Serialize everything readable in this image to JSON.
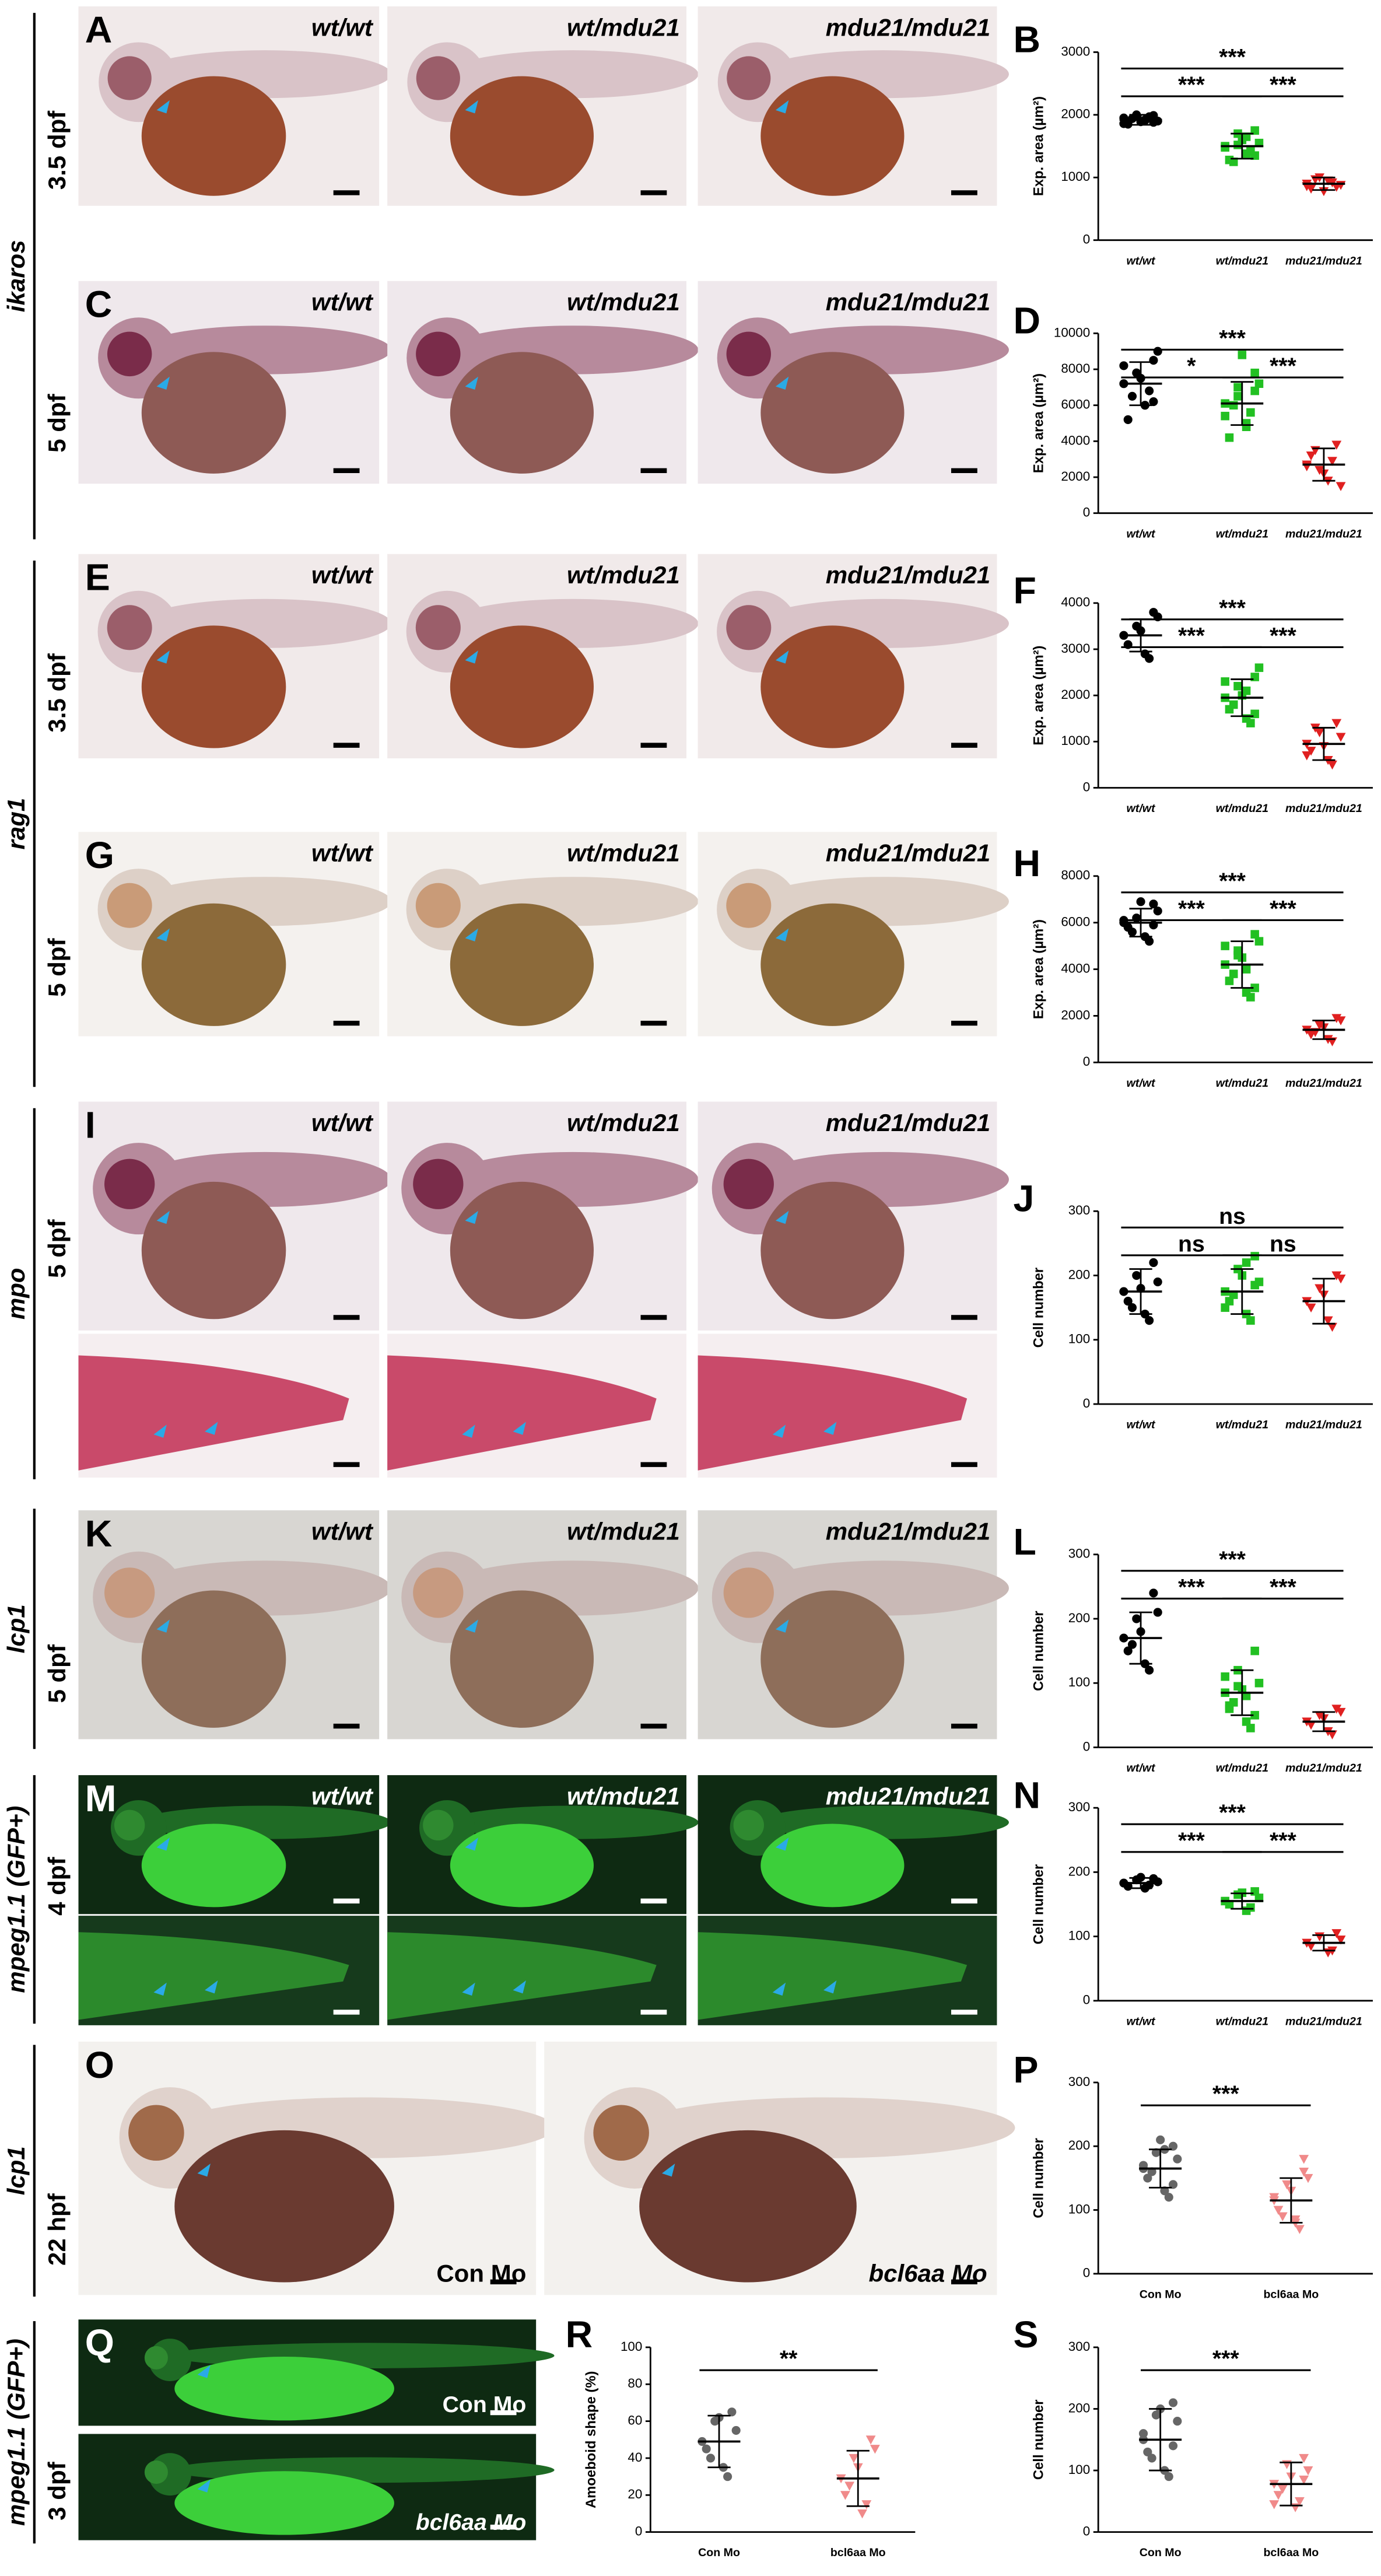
{
  "genes": [
    "ikaros",
    "rag1",
    "mpo",
    "lcp1",
    "mpeg1.1 (GFP+)",
    "lcp1",
    "mpeg1.1 (GFP+)"
  ],
  "panels": [
    {
      "letter": "A",
      "stage": "3.5 dpf",
      "labels": [
        "wt/wt",
        "wt/mdu21",
        "mdu21/mdu21"
      ]
    },
    {
      "letter": "C",
      "stage": "5 dpf",
      "labels": [
        "wt/wt",
        "wt/mdu21",
        "mdu21/mdu21"
      ]
    },
    {
      "letter": "E",
      "stage": "3.5 dpf",
      "labels": [
        "wt/wt",
        "wt/mdu21",
        "mdu21/mdu21"
      ]
    },
    {
      "letter": "G",
      "stage": "5 dpf",
      "labels": [
        "wt/wt",
        "wt/mdu21",
        "mdu21/mdu21"
      ]
    },
    {
      "letter": "I",
      "stage": "5 dpf",
      "labels": [
        "wt/wt",
        "wt/mdu21",
        "mdu21/mdu21"
      ]
    },
    {
      "letter": "K",
      "stage": "5 dpf",
      "labels": [
        "wt/wt",
        "wt/mdu21",
        "mdu21/mdu21"
      ]
    },
    {
      "letter": "M",
      "stage": "4 dpf",
      "labels": [
        "wt/wt",
        "wt/mdu21",
        "mdu21/mdu21"
      ]
    },
    {
      "letter": "O",
      "stage": "22 hpf",
      "labels": [
        "Con Mo",
        "bcl6aa Mo"
      ]
    },
    {
      "letter": "Q",
      "stage": "3 dpf",
      "labels": [
        "Con Mo",
        "bcl6aa Mo"
      ]
    }
  ],
  "chart_data": [
    {
      "type": "strip",
      "panel": "B",
      "y_label": "Exp. area (µm²)",
      "categories": [
        "wt/wt",
        "wt/mdu21",
        "mdu21/mdu21"
      ],
      "ylim": [
        0,
        3000
      ],
      "yticks": [
        0,
        1000,
        2000,
        3000
      ],
      "significance": [
        "***",
        "***",
        "***"
      ],
      "series": [
        {
          "color": "#000000",
          "marker": "circle",
          "mean": 1920,
          "sd": 80,
          "values": [
            1950,
            1880,
            1920,
            2000,
            1850,
            1900,
            1970,
            1890,
            1940,
            1860,
            1990,
            1910
          ]
        },
        {
          "color": "#22c022",
          "marker": "square",
          "mean": 1500,
          "sd": 200,
          "values": [
            1500,
            1350,
            1650,
            1700,
            1280,
            1550,
            1420,
            1600,
            1250,
            1480,
            1750,
            1380,
            1520
          ]
        },
        {
          "color": "#e02020",
          "marker": "triangle",
          "mean": 900,
          "sd": 100,
          "values": [
            900,
            850,
            950,
            1000,
            820,
            880,
            920,
            780,
            970,
            860
          ]
        }
      ]
    },
    {
      "type": "strip",
      "panel": "D",
      "y_label": "Exp. area (µm²)",
      "categories": [
        "wt/wt",
        "wt/mdu21",
        "mdu21/mdu21"
      ],
      "ylim": [
        0,
        10000
      ],
      "yticks": [
        0,
        2000,
        4000,
        6000,
        8000,
        10000
      ],
      "significance": [
        "***",
        "*",
        "***"
      ],
      "series": [
        {
          "color": "#000000",
          "marker": "circle",
          "mean": 7200,
          "sd": 1200,
          "values": [
            7200,
            8500,
            6000,
            7800,
            5200,
            9000,
            6800,
            7500,
            6500,
            8200,
            6200
          ]
        },
        {
          "color": "#22c022",
          "marker": "square",
          "mean": 6100,
          "sd": 1200,
          "values": [
            6100,
            7800,
            5000,
            6500,
            4200,
            7200,
            5600,
            8800,
            6000,
            5400,
            6800,
            4800,
            7000
          ]
        },
        {
          "color": "#e02020",
          "marker": "triangle",
          "mean": 2700,
          "sd": 900,
          "values": [
            2700,
            3800,
            1800,
            2400,
            3200,
            1500,
            2900,
            2200,
            3500,
            2600
          ]
        }
      ]
    },
    {
      "type": "strip",
      "panel": "F",
      "y_label": "Exp. area (µm²)",
      "categories": [
        "wt/wt",
        "wt/mdu21",
        "mdu21/mdu21"
      ],
      "ylim": [
        0,
        4000
      ],
      "yticks": [
        0,
        1000,
        2000,
        3000,
        4000
      ],
      "significance": [
        "***",
        "***",
        "***"
      ],
      "series": [
        {
          "color": "#000000",
          "marker": "circle",
          "mean": 3300,
          "sd": 350,
          "values": [
            3300,
            3800,
            2900,
            3500,
            3100,
            3700,
            2800,
            3400
          ]
        },
        {
          "color": "#22c022",
          "marker": "square",
          "mean": 1950,
          "sd": 400,
          "values": [
            1950,
            2400,
            1500,
            2200,
            1700,
            2600,
            1400,
            2000,
            1800,
            2300,
            1600,
            2100
          ]
        },
        {
          "color": "#e02020",
          "marker": "triangle",
          "mean": 950,
          "sd": 350,
          "values": [
            950,
            1400,
            600,
            1200,
            800,
            1100,
            500,
            900,
            1300,
            700
          ]
        }
      ]
    },
    {
      "type": "strip",
      "panel": "H",
      "y_label": "Exp. area (µm²)",
      "categories": [
        "wt/wt",
        "wt/mdu21",
        "mdu21/mdu21"
      ],
      "ylim": [
        0,
        8000
      ],
      "yticks": [
        0,
        2000,
        4000,
        6000,
        8000
      ],
      "significance": [
        "***",
        "***",
        "***"
      ],
      "series": [
        {
          "color": "#000000",
          "marker": "circle",
          "mean": 6000,
          "sd": 600,
          "values": [
            6000,
            6800,
            5400,
            6200,
            5800,
            6500,
            5200,
            6900,
            5600,
            6100,
            5900
          ]
        },
        {
          "color": "#22c022",
          "marker": "square",
          "mean": 4200,
          "sd": 1000,
          "values": [
            4200,
            5500,
            3000,
            4800,
            3500,
            5200,
            2800,
            4500,
            3800,
            5000,
            3200,
            4000,
            4600
          ]
        },
        {
          "color": "#e02020",
          "marker": "triangle",
          "mean": 1400,
          "sd": 400,
          "values": [
            1400,
            1900,
            1000,
            1600,
            1200,
            1800,
            900,
            1500,
            1300
          ]
        }
      ]
    },
    {
      "type": "strip",
      "panel": "J",
      "y_label": "Cell number",
      "categories": [
        "wt/wt",
        "wt/mdu21",
        "mdu21/mdu21"
      ],
      "ylim": [
        0,
        300
      ],
      "yticks": [
        0,
        100,
        200,
        300
      ],
      "significance": [
        "ns",
        "ns",
        "ns"
      ],
      "series": [
        {
          "color": "#000000",
          "marker": "circle",
          "mean": 175,
          "sd": 35,
          "values": [
            175,
            220,
            140,
            200,
            160,
            190,
            130,
            180,
            150
          ]
        },
        {
          "color": "#22c022",
          "marker": "square",
          "mean": 175,
          "sd": 35,
          "values": [
            175,
            230,
            140,
            210,
            160,
            190,
            130,
            200,
            170,
            150,
            185,
            220
          ]
        },
        {
          "color": "#e02020",
          "marker": "triangle",
          "mean": 160,
          "sd": 35,
          "values": [
            160,
            200,
            130,
            180,
            150,
            195,
            120,
            170
          ]
        }
      ]
    },
    {
      "type": "strip",
      "panel": "L",
      "y_label": "Cell number",
      "categories": [
        "wt/wt",
        "wt/mdu21",
        "mdu21/mdu21"
      ],
      "ylim": [
        0,
        300
      ],
      "yticks": [
        0,
        100,
        200,
        300
      ],
      "significance": [
        "***",
        "***",
        "***"
      ],
      "series": [
        {
          "color": "#000000",
          "marker": "circle",
          "mean": 170,
          "sd": 40,
          "values": [
            170,
            240,
            130,
            200,
            150,
            210,
            120,
            180,
            160
          ]
        },
        {
          "color": "#22c022",
          "marker": "square",
          "mean": 85,
          "sd": 35,
          "values": [
            85,
            150,
            40,
            120,
            60,
            100,
            30,
            90,
            70,
            110,
            50,
            80,
            95,
            65
          ]
        },
        {
          "color": "#e02020",
          "marker": "triangle",
          "mean": 40,
          "sd": 15,
          "values": [
            40,
            60,
            25,
            50,
            35,
            55,
            20,
            45
          ]
        }
      ]
    },
    {
      "type": "strip",
      "panel": "N",
      "y_label": "Cell number",
      "categories": [
        "wt/wt",
        "wt/mdu21",
        "mdu21/mdu21"
      ],
      "ylim": [
        0,
        300
      ],
      "yticks": [
        0,
        100,
        200,
        300
      ],
      "significance": [
        "***",
        "***",
        "***"
      ],
      "series": [
        {
          "color": "#000000",
          "marker": "circle",
          "mean": 183,
          "sd": 8,
          "values": [
            183,
            190,
            175,
            188,
            178,
            185,
            180,
            192
          ]
        },
        {
          "color": "#22c022",
          "marker": "square",
          "mean": 155,
          "sd": 12,
          "values": [
            155,
            170,
            140,
            165,
            150,
            160,
            145,
            168
          ]
        },
        {
          "color": "#e02020",
          "marker": "triangle",
          "mean": 90,
          "sd": 12,
          "values": [
            90,
            105,
            75,
            100,
            85,
            95,
            78
          ]
        }
      ]
    },
    {
      "type": "strip",
      "panel": "P",
      "y_label": "Cell number",
      "categories": [
        "Con Mo",
        "bcl6aa Mo"
      ],
      "ylim": [
        0,
        300
      ],
      "yticks": [
        0,
        100,
        200,
        300
      ],
      "significance": [
        "***"
      ],
      "series": [
        {
          "color": "#666666",
          "marker": "circle",
          "mean": 165,
          "sd": 30,
          "values": [
            165,
            200,
            130,
            190,
            150,
            180,
            120,
            210,
            160,
            170,
            140,
            195
          ]
        },
        {
          "color": "#f08a8a",
          "marker": "triangle",
          "mean": 115,
          "sd": 35,
          "values": [
            115,
            160,
            80,
            140,
            100,
            150,
            70,
            130,
            90,
            120,
            180,
            85
          ]
        }
      ]
    },
    {
      "type": "strip",
      "panel": "R",
      "y_label": "Amoeboid shape (%)",
      "categories": [
        "Con Mo",
        "bcl6aa Mo"
      ],
      "ylim": [
        0,
        100
      ],
      "yticks": [
        0,
        20,
        40,
        60,
        80,
        100
      ],
      "significance": [
        "**"
      ],
      "series": [
        {
          "color": "#666666",
          "marker": "circle",
          "mean": 49,
          "sd": 14,
          "values": [
            49,
            65,
            35,
            60,
            45,
            55,
            30,
            62,
            40
          ]
        },
        {
          "color": "#f08a8a",
          "marker": "triangle",
          "mean": 29,
          "sd": 15,
          "values": [
            29,
            50,
            10,
            40,
            20,
            45,
            15,
            35,
            25
          ]
        }
      ]
    },
    {
      "type": "strip",
      "panel": "S",
      "y_label": "Cell number",
      "categories": [
        "Con Mo",
        "bcl6aa Mo"
      ],
      "ylim": [
        0,
        300
      ],
      "yticks": [
        0,
        100,
        200,
        300
      ],
      "significance": [
        "***"
      ],
      "series": [
        {
          "color": "#666666",
          "marker": "circle",
          "mean": 150,
          "sd": 50,
          "values": [
            150,
            210,
            100,
            190,
            130,
            180,
            90,
            200,
            120,
            160,
            140
          ]
        },
        {
          "color": "#f08a8a",
          "marker": "triangle",
          "mean": 78,
          "sd": 35,
          "values": [
            78,
            120,
            40,
            110,
            60,
            100,
            50,
            90,
            70,
            45,
            85
          ]
        }
      ]
    }
  ]
}
